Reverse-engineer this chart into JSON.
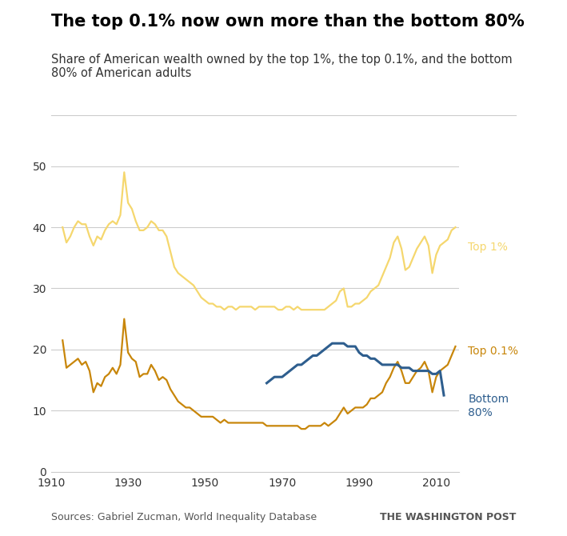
{
  "title": "The top 0.1% now own more than the bottom 80%",
  "subtitle": "Share of American wealth owned by the top 1%, the top 0.1%, and the bottom\n80% of American adults",
  "source": "Sources: Gabriel Zucman, World Inequality Database",
  "attribution": "THE WASHINGTON POST",
  "xlim": [
    1910,
    2016
  ],
  "ylim": [
    0,
    50
  ],
  "yticks": [
    0,
    10,
    20,
    30,
    40,
    50
  ],
  "xticks": [
    1910,
    1930,
    1950,
    1970,
    1990,
    2010
  ],
  "top1_color": "#F5D76E",
  "top01_color": "#C8860A",
  "bottom80_color": "#2E5E8E",
  "top1_label": "Top 1%",
  "top01_label": "Top 0.1%",
  "bottom80_label": "Bottom\n80%",
  "top1": {
    "years": [
      1913,
      1914,
      1915,
      1916,
      1917,
      1918,
      1919,
      1920,
      1921,
      1922,
      1923,
      1924,
      1925,
      1926,
      1927,
      1928,
      1929,
      1930,
      1931,
      1932,
      1933,
      1934,
      1935,
      1936,
      1937,
      1938,
      1939,
      1940,
      1941,
      1942,
      1943,
      1944,
      1945,
      1946,
      1947,
      1948,
      1949,
      1950,
      1951,
      1952,
      1953,
      1954,
      1955,
      1956,
      1957,
      1958,
      1959,
      1960,
      1961,
      1962,
      1963,
      1964,
      1965,
      1966,
      1967,
      1968,
      1969,
      1970,
      1971,
      1972,
      1973,
      1974,
      1975,
      1976,
      1977,
      1978,
      1979,
      1980,
      1981,
      1982,
      1983,
      1984,
      1985,
      1986,
      1987,
      1988,
      1989,
      1990,
      1991,
      1992,
      1993,
      1994,
      1995,
      1996,
      1997,
      1998,
      1999,
      2000,
      2001,
      2002,
      2003,
      2004,
      2005,
      2006,
      2007,
      2008,
      2009,
      2010,
      2011,
      2012,
      2013,
      2014,
      2015
    ],
    "values": [
      40.0,
      37.5,
      38.5,
      40.0,
      41.0,
      40.5,
      40.5,
      38.5,
      37.0,
      38.5,
      38.0,
      39.5,
      40.5,
      41.0,
      40.5,
      42.0,
      49.0,
      44.0,
      43.0,
      41.0,
      39.5,
      39.5,
      40.0,
      41.0,
      40.5,
      39.5,
      39.5,
      38.5,
      36.0,
      33.5,
      32.5,
      32.0,
      31.5,
      31.0,
      30.5,
      29.5,
      28.5,
      28.0,
      27.5,
      27.5,
      27.0,
      27.0,
      26.5,
      27.0,
      27.0,
      26.5,
      27.0,
      27.0,
      27.0,
      27.0,
      26.5,
      27.0,
      27.0,
      27.0,
      27.0,
      27.0,
      26.5,
      26.5,
      27.0,
      27.0,
      26.5,
      27.0,
      26.5,
      26.5,
      26.5,
      26.5,
      26.5,
      26.5,
      26.5,
      27.0,
      27.5,
      28.0,
      29.5,
      30.0,
      27.0,
      27.0,
      27.5,
      27.5,
      28.0,
      28.5,
      29.5,
      30.0,
      30.5,
      32.0,
      33.5,
      35.0,
      37.5,
      38.5,
      36.5,
      33.0,
      33.5,
      35.0,
      36.5,
      37.5,
      38.5,
      37.0,
      32.5,
      35.5,
      37.0,
      37.5,
      38.0,
      39.5,
      40.0
    ]
  },
  "top01": {
    "years": [
      1913,
      1914,
      1915,
      1916,
      1917,
      1918,
      1919,
      1920,
      1921,
      1922,
      1923,
      1924,
      1925,
      1926,
      1927,
      1928,
      1929,
      1930,
      1931,
      1932,
      1933,
      1934,
      1935,
      1936,
      1937,
      1938,
      1939,
      1940,
      1941,
      1942,
      1943,
      1944,
      1945,
      1946,
      1947,
      1948,
      1949,
      1950,
      1951,
      1952,
      1953,
      1954,
      1955,
      1956,
      1957,
      1958,
      1959,
      1960,
      1961,
      1962,
      1963,
      1964,
      1965,
      1966,
      1967,
      1968,
      1969,
      1970,
      1971,
      1972,
      1973,
      1974,
      1975,
      1976,
      1977,
      1978,
      1979,
      1980,
      1981,
      1982,
      1983,
      1984,
      1985,
      1986,
      1987,
      1988,
      1989,
      1990,
      1991,
      1992,
      1993,
      1994,
      1995,
      1996,
      1997,
      1998,
      1999,
      2000,
      2001,
      2002,
      2003,
      2004,
      2005,
      2006,
      2007,
      2008,
      2009,
      2010,
      2011,
      2012,
      2013,
      2014,
      2015
    ],
    "values": [
      21.5,
      17.0,
      17.5,
      18.0,
      18.5,
      17.5,
      18.0,
      16.5,
      13.0,
      14.5,
      14.0,
      15.5,
      16.0,
      17.0,
      16.0,
      17.5,
      25.0,
      19.5,
      18.5,
      18.0,
      15.5,
      16.0,
      16.0,
      17.5,
      16.5,
      15.0,
      15.5,
      15.0,
      13.5,
      12.5,
      11.5,
      11.0,
      10.5,
      10.5,
      10.0,
      9.5,
      9.0,
      9.0,
      9.0,
      9.0,
      8.5,
      8.0,
      8.5,
      8.0,
      8.0,
      8.0,
      8.0,
      8.0,
      8.0,
      8.0,
      8.0,
      8.0,
      8.0,
      7.5,
      7.5,
      7.5,
      7.5,
      7.5,
      7.5,
      7.5,
      7.5,
      7.5,
      7.0,
      7.0,
      7.5,
      7.5,
      7.5,
      7.5,
      8.0,
      7.5,
      8.0,
      8.5,
      9.5,
      10.5,
      9.5,
      10.0,
      10.5,
      10.5,
      10.5,
      11.0,
      12.0,
      12.0,
      12.5,
      13.0,
      14.5,
      15.5,
      17.0,
      18.0,
      16.5,
      14.5,
      14.5,
      15.5,
      16.5,
      17.0,
      18.0,
      16.5,
      13.0,
      15.5,
      16.5,
      17.0,
      17.5,
      19.0,
      20.5
    ]
  },
  "bottom80": {
    "years": [
      1966,
      1967,
      1968,
      1969,
      1970,
      1971,
      1972,
      1973,
      1974,
      1975,
      1976,
      1977,
      1978,
      1979,
      1980,
      1981,
      1982,
      1983,
      1984,
      1985,
      1986,
      1987,
      1988,
      1989,
      1990,
      1991,
      1992,
      1993,
      1994,
      1995,
      1996,
      1997,
      1998,
      1999,
      2000,
      2001,
      2002,
      2003,
      2004,
      2005,
      2006,
      2007,
      2008,
      2009,
      2010,
      2011,
      2012
    ],
    "values": [
      14.5,
      15.0,
      15.5,
      15.5,
      15.5,
      16.0,
      16.5,
      17.0,
      17.5,
      17.5,
      18.0,
      18.5,
      19.0,
      19.0,
      19.5,
      20.0,
      20.5,
      21.0,
      21.0,
      21.0,
      21.0,
      20.5,
      20.5,
      20.5,
      19.5,
      19.0,
      19.0,
      18.5,
      18.5,
      18.0,
      17.5,
      17.5,
      17.5,
      17.5,
      17.5,
      17.0,
      17.0,
      17.0,
      16.5,
      16.5,
      16.5,
      16.5,
      16.5,
      16.0,
      16.0,
      16.5,
      12.5
    ]
  },
  "background_color": "#ffffff",
  "grid_color": "#cccccc",
  "title_fontsize": 15,
  "subtitle_fontsize": 10.5,
  "axis_fontsize": 10,
  "source_fontsize": 9
}
